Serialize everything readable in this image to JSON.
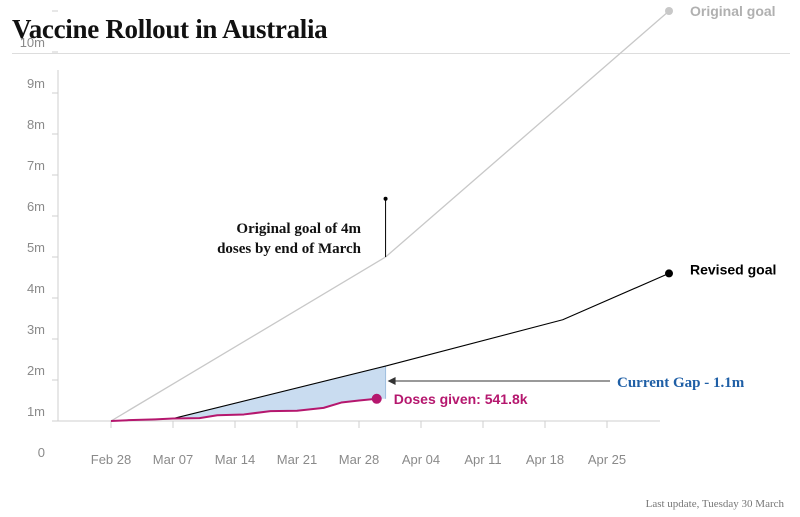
{
  "page": {
    "title": "Vaccine Rollout in Australia",
    "footnote": "Last update, Tuesday 30 March"
  },
  "colors": {
    "original_goal": "#c8c8c8",
    "revised_goal": "#000000",
    "doses_given": "#b5176e",
    "gap_fill": "#c9dcf0",
    "gap_label": "#1f5fa6",
    "axis_text": "#8a8a8a"
  },
  "chart_data": {
    "type": "line",
    "title": "Vaccine Rollout in Australia",
    "xlabel": "",
    "ylabel": "",
    "y_ticks": [
      {
        "value": 0,
        "label": "0"
      },
      {
        "value": 1000000,
        "label": "1m"
      },
      {
        "value": 2000000,
        "label": "2m"
      },
      {
        "value": 3000000,
        "label": "3m"
      },
      {
        "value": 4000000,
        "label": "4m"
      },
      {
        "value": 5000000,
        "label": "5m"
      },
      {
        "value": 6000000,
        "label": "6m"
      },
      {
        "value": 7000000,
        "label": "7m"
      },
      {
        "value": 8000000,
        "label": "8m"
      },
      {
        "value": 9000000,
        "label": "9m"
      },
      {
        "value": 10000000,
        "label": "10m"
      }
    ],
    "x_ticks": [
      "2021-02-28",
      "2021-03-07",
      "2021-03-14",
      "2021-03-21",
      "2021-03-28",
      "2021-04-04",
      "2021-04-11",
      "2021-04-18",
      "2021-04-25"
    ],
    "x_tick_labels": [
      "Feb 28",
      "Mar 07",
      "Mar 14",
      "Mar 21",
      "Mar 28",
      "Apr 04",
      "Apr 11",
      "Apr 18",
      "Apr 25"
    ],
    "xlim": [
      "2021-02-28",
      "2021-05-03"
    ],
    "ylim": [
      0,
      10300000
    ],
    "series": [
      {
        "name": "Original goal",
        "points": [
          [
            "2021-02-28",
            0
          ],
          [
            "2021-03-31",
            4000000
          ],
          [
            "2021-05-02",
            10000000
          ]
        ]
      },
      {
        "name": "Revised goal",
        "points": [
          [
            "2021-02-28",
            0
          ],
          [
            "2021-03-07",
            60000
          ],
          [
            "2021-03-31",
            1340000
          ],
          [
            "2021-04-20",
            2470000
          ],
          [
            "2021-05-02",
            3600000
          ]
        ]
      },
      {
        "name": "Doses given",
        "points": [
          [
            "2021-02-28",
            0
          ],
          [
            "2021-03-02",
            20000
          ],
          [
            "2021-03-05",
            40000
          ],
          [
            "2021-03-07",
            60000
          ],
          [
            "2021-03-10",
            70000
          ],
          [
            "2021-03-12",
            140000
          ],
          [
            "2021-03-15",
            160000
          ],
          [
            "2021-03-18",
            240000
          ],
          [
            "2021-03-21",
            250000
          ],
          [
            "2021-03-24",
            320000
          ],
          [
            "2021-03-26",
            450000
          ],
          [
            "2021-03-28",
            500000
          ],
          [
            "2021-03-30",
            541800
          ]
        ]
      }
    ],
    "labels": {
      "original_goal": "Original goal",
      "revised_goal": "Revised goal",
      "doses_given": "Doses given: 541.8k",
      "current_gap": "Current Gap - 1.1m"
    },
    "annotation": {
      "text_line1": "Original goal of 4m",
      "text_line2": "doses by end of March",
      "date": "2021-03-31",
      "value_from": 4000000,
      "value_to": 5420000
    },
    "gap": {
      "date_from": "2021-03-07",
      "date_to": "2021-03-31",
      "label": "Current Gap - 1.1m"
    },
    "grid": false
  }
}
